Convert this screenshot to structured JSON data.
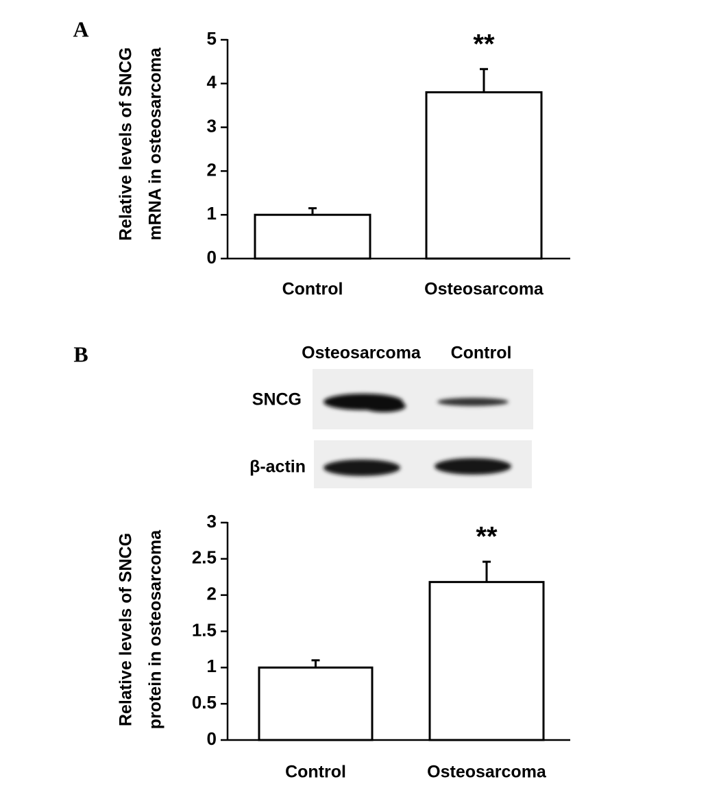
{
  "chart_data": [
    {
      "type": "bar",
      "panel": "A",
      "ylabel": [
        "Relative levels of SNCG",
        "mRNA in osteosarcoma"
      ],
      "categories": [
        "Control",
        "Osteosarcoma"
      ],
      "values": [
        1.0,
        3.8
      ],
      "errors": [
        0.15,
        0.53
      ],
      "annotations": [
        null,
        "**"
      ],
      "color": "#ffffff",
      "ylim": [
        0,
        5
      ],
      "yticks": [
        0,
        1,
        2,
        3,
        4,
        5
      ]
    },
    {
      "type": "bar",
      "panel": "B",
      "blot": {
        "lanes": [
          "Osteosarcoma",
          "Control"
        ],
        "rows": [
          "SNCG",
          "β-actin"
        ]
      },
      "ylabel": [
        "Relative levels of SNCG",
        "protein in osteosarcoma"
      ],
      "categories": [
        "Control",
        "Osteosarcoma"
      ],
      "values": [
        1.0,
        2.18
      ],
      "errors": [
        0.1,
        0.28
      ],
      "annotations": [
        null,
        "**"
      ],
      "color": "#ffffff",
      "ylim": [
        0,
        3
      ],
      "yticks": [
        0,
        0.5,
        1,
        1.5,
        2,
        2.5,
        3
      ]
    }
  ]
}
